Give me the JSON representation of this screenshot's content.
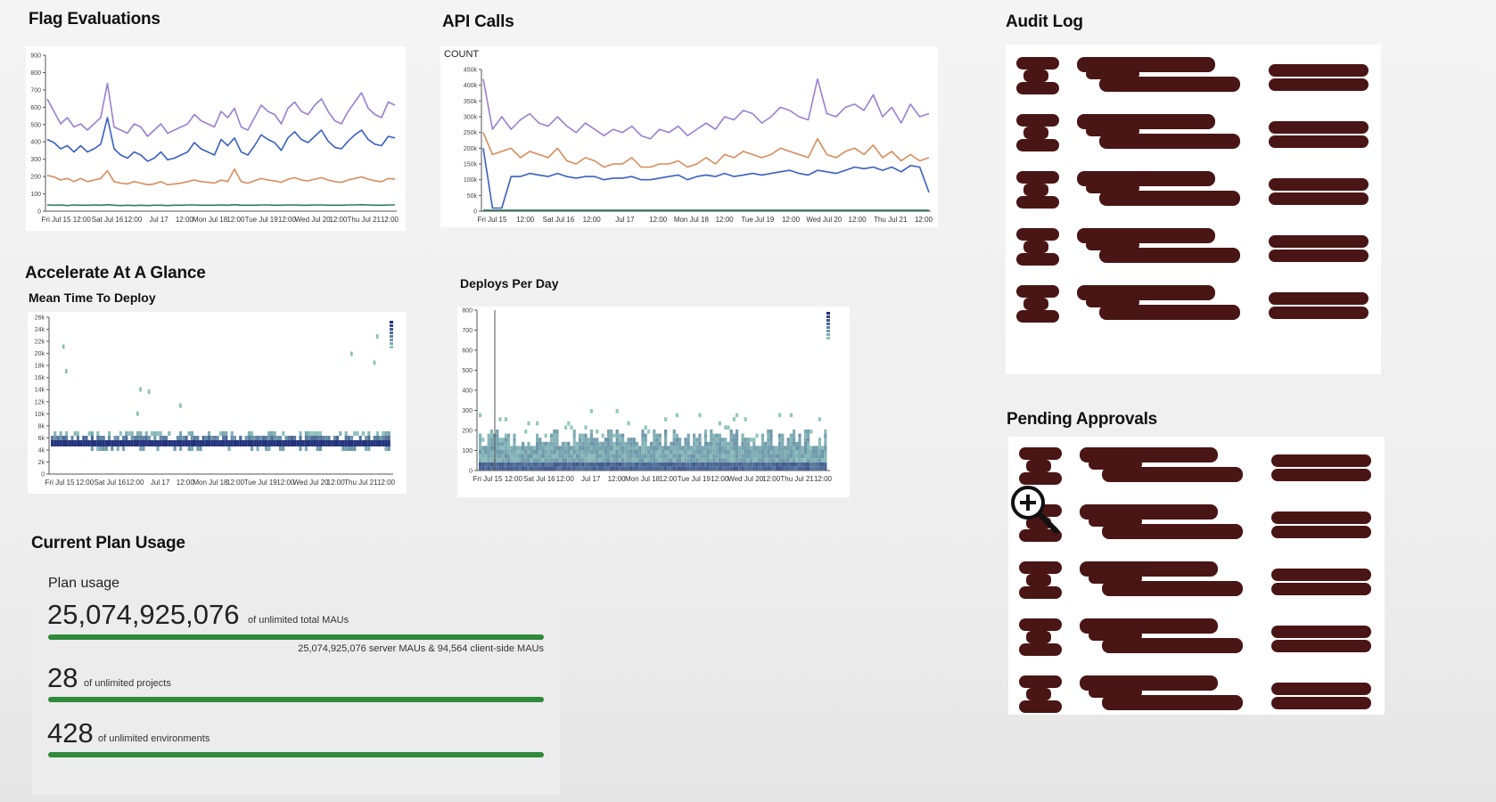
{
  "sections": {
    "flag_evaluations": "Flag Evaluations",
    "api_calls": "API Calls",
    "audit_log": "Audit Log",
    "accelerate": "Accelerate At A Glance",
    "mean_time_to_deploy": "Mean Time To Deploy",
    "deploys_per_day": "Deploys Per Day",
    "current_plan_usage": "Current Plan Usage",
    "pending_approvals": "Pending Approvals"
  },
  "colors": {
    "purple": "#9b7fd0",
    "blue": "#3b5fc4",
    "orange": "#d98b5a",
    "green": "#2e7d5e",
    "heat_dark": "#1e2a78",
    "heat_light": "#9fd8c8",
    "usage_bar": "#2f8a3a",
    "redaction": "#4a1515"
  },
  "plan_usage": {
    "label": "Plan usage",
    "maus_value": "25,074,925,076",
    "maus_suffix": "of unlimited total MAUs",
    "maus_detail": "25,074,925,076 server MAUs & 94,564 client-side MAUs",
    "projects_value": "28",
    "projects_suffix": "of unlimited projects",
    "environments_value": "428",
    "environments_suffix": "of unlimited environments"
  },
  "chart_data": [
    {
      "id": "flag_evaluations",
      "type": "line",
      "title": "Flag Evaluations",
      "ylim": [
        0,
        1000
      ],
      "y_ticks": [
        "0",
        "100",
        "200",
        "300",
        "400",
        "500",
        "600",
        "700",
        "800",
        "900"
      ],
      "x_ticks": [
        "Fri Jul 15",
        "12:00",
        "Sat Jul 16",
        "12:00",
        "Jul 17",
        "12:00",
        "Mon Jul 18",
        "12:00",
        "Tue Jul 19",
        "12:00",
        "Wed Jul 20",
        "12:00",
        "Thu Jul 21",
        "12:00"
      ],
      "series": [
        {
          "color": "purple",
          "values": [
            720,
            640,
            560,
            600,
            540,
            560,
            520,
            560,
            600,
            820,
            540,
            520,
            500,
            560,
            540,
            480,
            520,
            560,
            500,
            520,
            540,
            560,
            620,
            580,
            560,
            540,
            640,
            600,
            660,
            540,
            520,
            600,
            680,
            640,
            620,
            560,
            660,
            700,
            640,
            620,
            680,
            720,
            640,
            580,
            560,
            640,
            700,
            760,
            660,
            620,
            600,
            700,
            680
          ]
        },
        {
          "color": "blue",
          "values": [
            460,
            440,
            400,
            420,
            380,
            420,
            380,
            400,
            430,
            600,
            400,
            360,
            340,
            380,
            360,
            320,
            340,
            380,
            330,
            340,
            360,
            380,
            440,
            400,
            380,
            360,
            460,
            420,
            470,
            380,
            360,
            420,
            490,
            460,
            440,
            390,
            470,
            510,
            460,
            440,
            480,
            520,
            450,
            410,
            400,
            450,
            490,
            520,
            460,
            430,
            420,
            480,
            470
          ]
        },
        {
          "color": "orange",
          "values": [
            230,
            220,
            200,
            210,
            190,
            210,
            190,
            200,
            210,
            260,
            190,
            180,
            175,
            190,
            180,
            170,
            175,
            190,
            170,
            175,
            180,
            190,
            200,
            190,
            185,
            180,
            200,
            190,
            270,
            190,
            180,
            195,
            210,
            200,
            195,
            185,
            205,
            215,
            200,
            195,
            205,
            215,
            200,
            190,
            185,
            200,
            210,
            220,
            205,
            195,
            190,
            210,
            205
          ]
        },
        {
          "color": "green",
          "values": [
            40,
            38,
            40,
            36,
            40,
            38,
            38,
            40,
            38,
            42,
            38,
            36,
            38,
            36,
            38,
            36,
            38,
            38,
            36,
            38,
            38,
            40,
            40,
            38,
            38,
            38,
            40,
            38,
            42,
            38,
            38,
            38,
            40,
            40,
            38,
            38,
            40,
            40,
            38,
            38,
            40,
            40,
            38,
            38,
            38,
            40,
            40,
            42,
            40,
            38,
            38,
            40,
            40
          ]
        }
      ]
    },
    {
      "id": "api_calls",
      "type": "line",
      "title": "API Calls",
      "ylabel": "COUNT",
      "ylim": [
        0,
        450000
      ],
      "y_ticks": [
        "0",
        "50k",
        "100k",
        "150k",
        "200k",
        "250k",
        "300k",
        "350k",
        "400k",
        "450k"
      ],
      "x_ticks": [
        "Fri Jul 15",
        "12:00",
        "Sat Jul 16",
        "12:00",
        "Jul 17",
        "12:00",
        "Mon Jul 18",
        "12:00",
        "Tue Jul 19",
        "12:00",
        "Wed Jul 20",
        "12:00",
        "Thu Jul 21",
        "12:00"
      ],
      "series": [
        {
          "color": "purple",
          "values": [
            420000,
            260000,
            300000,
            260000,
            290000,
            310000,
            280000,
            270000,
            300000,
            270000,
            250000,
            280000,
            260000,
            240000,
            260000,
            250000,
            270000,
            240000,
            230000,
            260000,
            250000,
            270000,
            240000,
            260000,
            280000,
            260000,
            300000,
            290000,
            320000,
            310000,
            280000,
            300000,
            330000,
            320000,
            300000,
            290000,
            420000,
            310000,
            300000,
            330000,
            340000,
            320000,
            370000,
            300000,
            330000,
            280000,
            340000,
            300000,
            310000
          ]
        },
        {
          "color": "orange",
          "values": [
            250000,
            180000,
            190000,
            200000,
            170000,
            190000,
            180000,
            170000,
            200000,
            160000,
            150000,
            170000,
            160000,
            140000,
            150000,
            150000,
            170000,
            140000,
            140000,
            150000,
            150000,
            160000,
            140000,
            150000,
            170000,
            150000,
            180000,
            170000,
            190000,
            180000,
            170000,
            180000,
            200000,
            190000,
            180000,
            170000,
            230000,
            180000,
            170000,
            190000,
            200000,
            180000,
            210000,
            170000,
            190000,
            160000,
            180000,
            160000,
            170000
          ]
        },
        {
          "color": "blue",
          "values": [
            200000,
            10000,
            10000,
            110000,
            110000,
            120000,
            115000,
            110000,
            120000,
            110000,
            105000,
            110000,
            110000,
            100000,
            105000,
            105000,
            110000,
            100000,
            100000,
            105000,
            110000,
            115000,
            100000,
            110000,
            115000,
            110000,
            120000,
            110000,
            115000,
            120000,
            115000,
            120000,
            125000,
            130000,
            120000,
            115000,
            130000,
            125000,
            120000,
            130000,
            140000,
            135000,
            140000,
            130000,
            140000,
            125000,
            145000,
            140000,
            60000
          ]
        },
        {
          "color": "green",
          "values": [
            3000,
            3000,
            3000,
            3000,
            3000,
            3000,
            3000,
            3000,
            3000,
            3000,
            3000,
            3000,
            3000,
            3000,
            3000,
            3000,
            3000,
            3000,
            3000,
            3000,
            3000,
            3000,
            3000,
            3000,
            3000,
            3000,
            3000,
            3000,
            3000,
            3000,
            3000,
            3000,
            3000,
            3000,
            3000,
            3000,
            3000,
            3000,
            3000,
            3000,
            3000,
            3000,
            3000,
            3000,
            3000,
            3000,
            3000,
            3000,
            3000
          ]
        }
      ]
    },
    {
      "id": "mean_time_to_deploy",
      "type": "heatmap",
      "title": "Mean Time To Deploy",
      "y_ticks": [
        "0",
        "2k",
        "4k",
        "6k",
        "8k",
        "10k",
        "12k",
        "14k",
        "16k",
        "18k",
        "20k",
        "22k",
        "24k",
        "26k"
      ],
      "x_ticks": [
        "Fri Jul 15",
        "12:00",
        "Sat Jul 16",
        "12:00",
        "Jul 17",
        "12:00",
        "Mon Jul 18",
        "12:00",
        "Tue Jul 19",
        "12:00",
        "Wed Jul 20",
        "12:00",
        "Thu Jul 21",
        "12:00"
      ]
    },
    {
      "id": "deploys_per_day",
      "type": "heatmap",
      "title": "Deploys Per Day",
      "y_ticks": [
        "0",
        "100",
        "200",
        "300",
        "400",
        "500",
        "600",
        "700",
        "800"
      ],
      "x_ticks": [
        "Fri Jul 15",
        "12:00",
        "Sat Jul 16",
        "12:00",
        "Jul 17",
        "12:00",
        "Mon Jul 18",
        "12:00",
        "Tue Jul 19",
        "12:00",
        "Wed Jul 20",
        "12:00",
        "Thu Jul 21",
        "12:00"
      ]
    }
  ]
}
